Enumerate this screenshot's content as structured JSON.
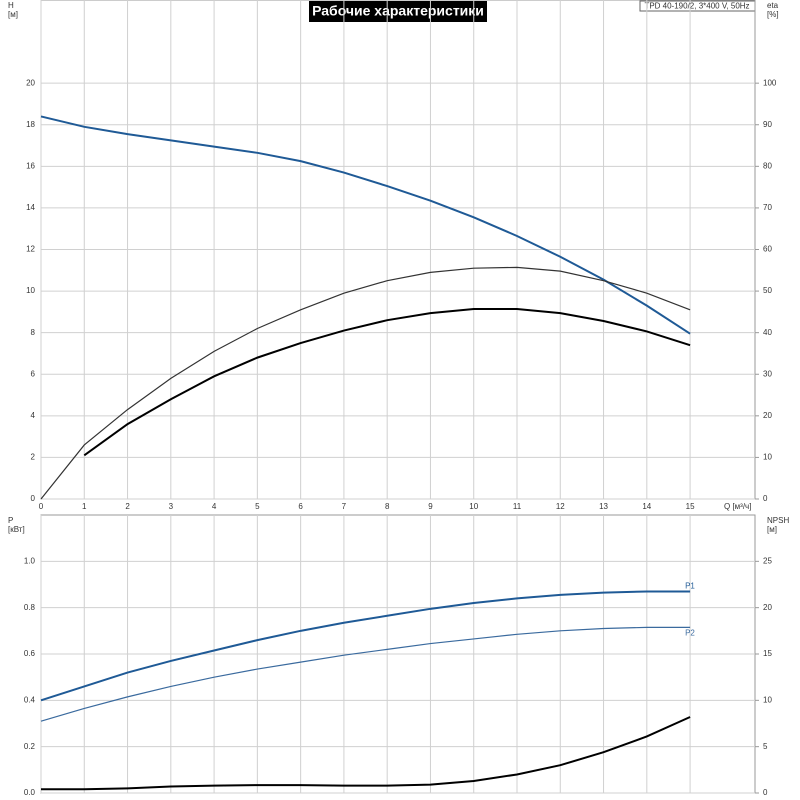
{
  "title": "Рабочие характеристики",
  "subtitle": "TPD 40-190/2, 3*400 V, 50Hz",
  "chart_data": [
    {
      "type": "line",
      "y_label": "H",
      "y_unit": "[м]",
      "y2_label": "eta",
      "y2_unit": "[%]",
      "x_label": "Q [м³/ч]",
      "x": [
        0,
        1,
        2,
        3,
        4,
        5,
        6,
        7,
        8,
        9,
        10,
        11,
        12,
        13,
        14,
        15
      ],
      "xlim": [
        0,
        16.5
      ],
      "xticks": [
        0,
        1,
        2,
        3,
        4,
        5,
        6,
        7,
        8,
        9,
        10,
        11,
        12,
        13,
        14,
        15
      ],
      "ylim": [
        0,
        24
      ],
      "yticks": [
        0,
        2,
        4,
        6,
        8,
        10,
        12,
        14,
        16,
        18,
        20
      ],
      "y2lim": [
        0,
        120
      ],
      "y2ticks": [
        0,
        10,
        20,
        30,
        40,
        50,
        60,
        70,
        80,
        90,
        100
      ],
      "grid": true,
      "series": [
        {
          "color": "#1f5a96",
          "width": 2,
          "values": [
            18.4,
            17.9,
            17.55,
            17.25,
            16.95,
            16.65,
            16.25,
            15.7,
            15.05,
            14.35,
            13.55,
            12.65,
            11.65,
            10.55,
            9.3,
            7.95
          ]
        },
        {
          "color": "#333333",
          "width": 1.2,
          "axis": "y2",
          "values": [
            0,
            13,
            21.5,
            29,
            35.5,
            41,
            45.5,
            49.5,
            52.5,
            54.5,
            55.5,
            55.7,
            54.8,
            52.5,
            49.5,
            45.5
          ]
        },
        {
          "color": "#000000",
          "width": 2,
          "axis": "y2",
          "values": [
            null,
            10.5,
            18,
            24,
            29.5,
            34,
            37.5,
            40.5,
            43,
            44.7,
            45.7,
            45.7,
            44.7,
            42.8,
            40.3,
            37
          ]
        }
      ]
    },
    {
      "type": "line",
      "y_label": "P",
      "y_unit": "[кВт]",
      "y2_label": "NPSH",
      "y2_unit": "[м]",
      "x": [
        0,
        1,
        2,
        3,
        4,
        5,
        6,
        7,
        8,
        9,
        10,
        11,
        12,
        13,
        14,
        15
      ],
      "xlim": [
        0,
        16.5
      ],
      "xticks": [
        0,
        1,
        2,
        3,
        4,
        5,
        6,
        7,
        8,
        9,
        10,
        11,
        12,
        13,
        14,
        15
      ],
      "ylim": [
        0,
        1.2
      ],
      "yticks": [
        {
          "value": 0,
          "label": "0.0"
        },
        0.2,
        0.4,
        0.6,
        0.8,
        {
          "value": 1,
          "label": "1.0"
        }
      ],
      "y2lim": [
        0,
        30
      ],
      "y2ticks": [
        0,
        5,
        10,
        15,
        20,
        25
      ],
      "grid": true,
      "series": [
        {
          "name": "P1",
          "color": "#1f5a96",
          "width": 2,
          "values": [
            0.4,
            0.46,
            0.52,
            0.57,
            0.615,
            0.66,
            0.7,
            0.735,
            0.765,
            0.795,
            0.82,
            0.84,
            0.855,
            0.865,
            0.87,
            0.87
          ]
        },
        {
          "name": "P2",
          "color": "#3a6a9e",
          "width": 1.2,
          "values": [
            0.31,
            0.365,
            0.415,
            0.46,
            0.5,
            0.535,
            0.565,
            0.595,
            0.62,
            0.645,
            0.665,
            0.685,
            0.7,
            0.71,
            0.715,
            0.715
          ]
        },
        {
          "color": "#000000",
          "width": 2,
          "axis": "y2",
          "values": [
            0.4,
            0.4,
            0.5,
            0.7,
            0.8,
            0.85,
            0.85,
            0.8,
            0.8,
            0.9,
            1.3,
            2.0,
            3.0,
            4.4,
            6.1,
            8.2
          ]
        }
      ]
    }
  ]
}
